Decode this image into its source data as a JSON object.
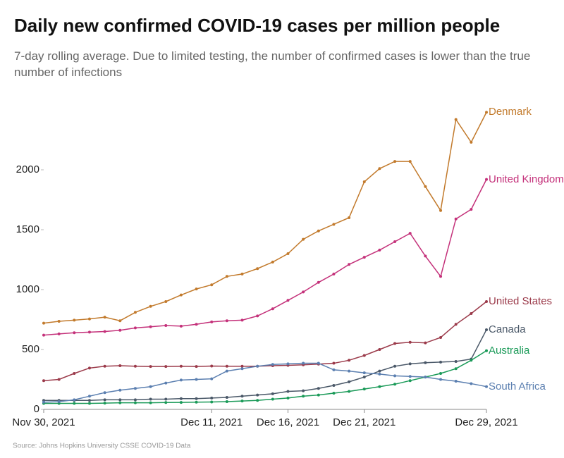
{
  "chart_data": {
    "type": "line",
    "title": "Daily new confirmed COVID-19 cases per million people",
    "subtitle": "7-day rolling average. Due to limited testing, the number of confirmed cases is lower than the true number of infections",
    "source": "Source: Johns Hopkins University CSSE COVID-19 Data",
    "categories": [
      "Nov 30, 2021",
      null,
      null,
      null,
      null,
      null,
      null,
      null,
      null,
      null,
      null,
      "Dec 11, 2021",
      null,
      null,
      null,
      null,
      "Dec 16, 2021",
      null,
      null,
      null,
      null,
      "Dec 21, 2021",
      null,
      null,
      null,
      null,
      null,
      null,
      null,
      "Dec 29, 2021"
    ],
    "ylim": [
      0,
      2500
    ],
    "yticks": [
      0,
      500,
      1000,
      1500,
      2000
    ],
    "grid": false,
    "series": [
      {
        "name": "Denmark",
        "color": "#c27a2c",
        "values": [
          720,
          735,
          745,
          755,
          770,
          740,
          810,
          860,
          900,
          955,
          1005,
          1040,
          1110,
          1130,
          1175,
          1230,
          1300,
          1420,
          1490,
          1545,
          1600,
          1900,
          2010,
          2070,
          2070,
          1860,
          1660,
          2420,
          2230,
          2480
        ]
      },
      {
        "name": "United Kingdom",
        "color": "#c4317a",
        "values": [
          620,
          630,
          640,
          645,
          650,
          660,
          680,
          690,
          700,
          695,
          710,
          730,
          740,
          745,
          780,
          840,
          910,
          980,
          1060,
          1130,
          1210,
          1270,
          1330,
          1400,
          1470,
          1280,
          1110,
          1590,
          1670,
          1920
        ]
      },
      {
        "name": "United States",
        "color": "#9b3a4a",
        "values": [
          240,
          250,
          300,
          345,
          360,
          365,
          360,
          358,
          358,
          360,
          358,
          362,
          360,
          360,
          360,
          365,
          368,
          372,
          378,
          385,
          410,
          450,
          500,
          550,
          560,
          555,
          600,
          710,
          800,
          900
        ]
      },
      {
        "name": "Canada",
        "color": "#4a5868",
        "values": [
          75,
          75,
          75,
          75,
          80,
          80,
          80,
          85,
          85,
          90,
          90,
          95,
          100,
          110,
          120,
          130,
          150,
          155,
          175,
          200,
          230,
          270,
          320,
          360,
          380,
          390,
          395,
          400,
          420,
          665
        ]
      },
      {
        "name": "Australia",
        "color": "#1a9a58",
        "values": [
          50,
          50,
          50,
          50,
          52,
          55,
          55,
          55,
          57,
          58,
          60,
          62,
          65,
          70,
          75,
          85,
          95,
          110,
          120,
          135,
          150,
          170,
          190,
          210,
          240,
          270,
          300,
          340,
          410,
          490
        ]
      },
      {
        "name": "South Africa",
        "color": "#5b7fb0",
        "values": [
          60,
          65,
          80,
          110,
          140,
          160,
          175,
          190,
          220,
          245,
          250,
          255,
          320,
          340,
          360,
          375,
          380,
          385,
          385,
          330,
          320,
          305,
          295,
          280,
          275,
          270,
          250,
          235,
          215,
          190
        ]
      }
    ]
  }
}
